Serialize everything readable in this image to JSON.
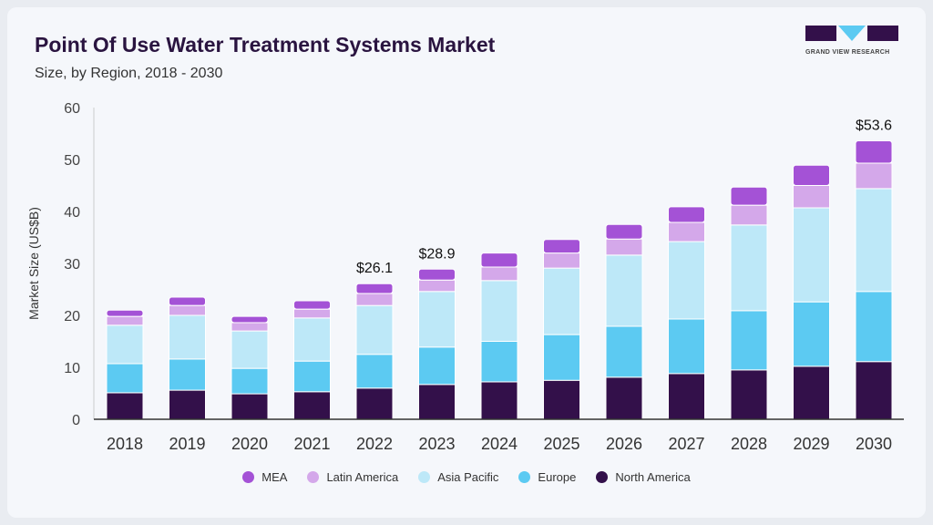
{
  "header": {
    "title": "Point Of Use Water Treatment Systems Market",
    "subtitle": "Size, by Region, 2018 - 2030"
  },
  "logo": {
    "text": "GRAND VIEW RESEARCH"
  },
  "chart_data": {
    "type": "bar",
    "stacked": true,
    "title": "Point Of Use Water Treatment Systems Market",
    "subtitle": "Size, by Region, 2018 - 2030",
    "xlabel": "",
    "ylabel": "Market Size (US$B)",
    "ylim": [
      0,
      60
    ],
    "yticks": [
      0,
      10,
      20,
      30,
      40,
      50,
      60
    ],
    "categories": [
      "2018",
      "2019",
      "2020",
      "2021",
      "2022",
      "2023",
      "2024",
      "2025",
      "2026",
      "2027",
      "2028",
      "2029",
      "2030"
    ],
    "series": [
      {
        "name": "North America",
        "color": "#33104a",
        "values": [
          5.1,
          5.6,
          4.9,
          5.3,
          6.0,
          6.7,
          7.2,
          7.5,
          8.1,
          8.8,
          9.5,
          10.2,
          11.1
        ]
      },
      {
        "name": "Europe",
        "color": "#5ccaf2",
        "values": [
          5.6,
          6.0,
          4.9,
          5.9,
          6.5,
          7.2,
          7.8,
          8.8,
          9.8,
          10.5,
          11.4,
          12.4,
          13.5
        ]
      },
      {
        "name": "Asia Pacific",
        "color": "#bde8f8",
        "values": [
          7.4,
          8.4,
          7.2,
          8.3,
          9.4,
          10.7,
          11.7,
          12.8,
          13.7,
          14.9,
          16.5,
          18.1,
          19.8
        ]
      },
      {
        "name": "Latin America",
        "color": "#d4a8ea",
        "values": [
          1.7,
          1.9,
          1.6,
          1.7,
          2.3,
          2.2,
          2.6,
          2.9,
          3.1,
          3.7,
          3.8,
          4.3,
          4.9
        ]
      },
      {
        "name": "MEA",
        "color": "#a452d6",
        "values": [
          1.2,
          1.6,
          1.2,
          1.6,
          1.9,
          2.1,
          2.7,
          2.6,
          2.8,
          3.0,
          3.5,
          3.9,
          4.3
        ]
      }
    ],
    "annotations": [
      {
        "category": "2022",
        "text": "$26.1"
      },
      {
        "category": "2023",
        "text": "$28.9"
      },
      {
        "category": "2030",
        "text": "$53.6"
      }
    ],
    "legend_order": [
      "MEA",
      "Latin America",
      "Asia Pacific",
      "Europe",
      "North America"
    ],
    "legend_position": "bottom",
    "grid": false
  }
}
